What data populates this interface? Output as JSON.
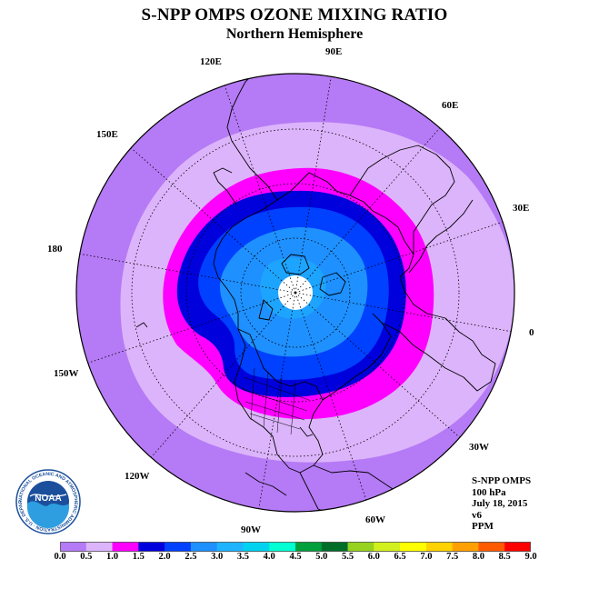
{
  "header": {
    "title": "S-NPP OMPS OZONE MIXING RATIO",
    "subtitle": "Northern Hemisphere"
  },
  "longitude_labels": {
    "lon_90e": "90E",
    "lon_60e": "60E",
    "lon_30e": "30E",
    "lon_0": "0",
    "lon_30w": "30W",
    "lon_60w": "60W",
    "lon_90w": "90W",
    "lon_120w": "120W",
    "lon_150w": "150W",
    "lon_180": "180",
    "lon_150e": "150E",
    "lon_120e": "120E"
  },
  "info": {
    "instrument": "S-NPP OMPS",
    "level": "100 hPa",
    "date": "July 18, 2015",
    "version": "v6",
    "units": "PPM"
  },
  "logo": {
    "text": "NOAA",
    "ring_text": "NATIONAL OCEANIC AND ATMOSPHERIC ADMINISTRATION · U.S. DEPARTMENT OF COMMERCE"
  },
  "colorbar": {
    "labels": [
      "0.0",
      "0.5",
      "1.0",
      "1.5",
      "2.0",
      "2.5",
      "3.0",
      "3.5",
      "4.0",
      "4.5",
      "5.0",
      "5.5",
      "6.0",
      "6.5",
      "7.0",
      "7.5",
      "8.0",
      "8.5",
      "9.0"
    ],
    "colors": [
      "#b57af5",
      "#dcb4fb",
      "#ff00ff",
      "#0000dd",
      "#0040ff",
      "#1e90ff",
      "#1eb4ff",
      "#00d2f0",
      "#00ffd2",
      "#00a03c",
      "#006e28",
      "#96d21e",
      "#d2f01e",
      "#ffff00",
      "#ffd200",
      "#ffa000",
      "#ff5a00",
      "#ff0000",
      "#8c5028"
    ]
  },
  "map_data": {
    "projection": "north polar stereographic",
    "pressure_level": "100 hPa",
    "field_bands_ppm": [
      {
        "range": [
          0.0,
          0.5
        ],
        "where": "outer ring, low latitudes"
      },
      {
        "range": [
          0.5,
          1.0
        ],
        "where": "subtropics"
      },
      {
        "range": [
          1.0,
          1.5
        ],
        "where": "mid latitudes"
      },
      {
        "range": [
          1.5,
          2.0
        ],
        "where": "mid-high latitudes"
      },
      {
        "range": [
          2.0,
          2.5
        ],
        "where": "high latitudes"
      },
      {
        "range": [
          2.5,
          3.0
        ],
        "where": "polar region"
      }
    ],
    "missing_data": "pole (white)"
  }
}
